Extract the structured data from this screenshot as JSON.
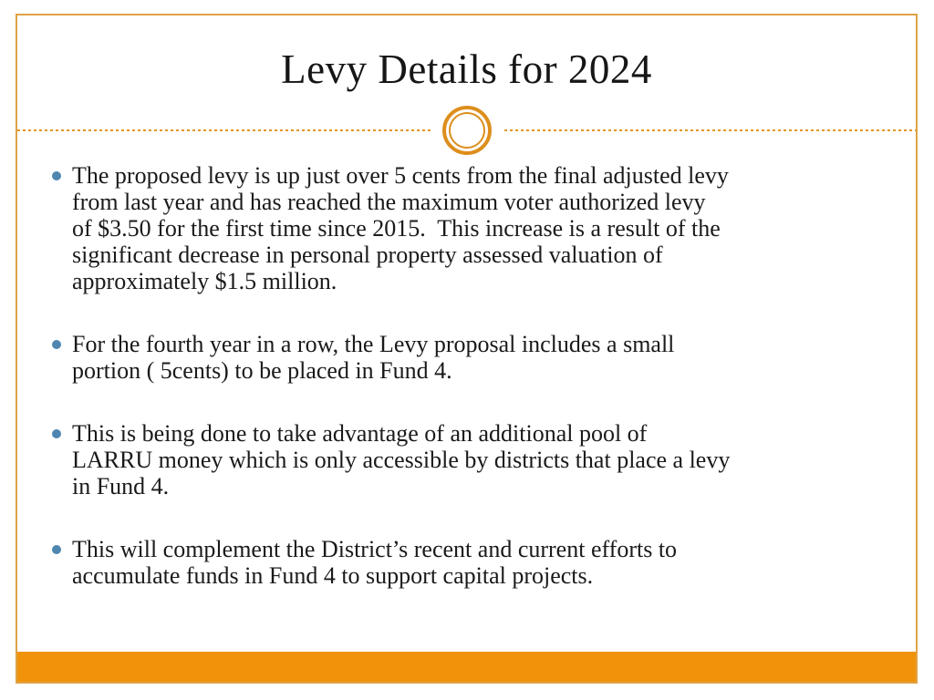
{
  "slide": {
    "title": "Levy Details for 2024",
    "bullets": [
      {
        "lines": [
          "The proposed levy is up just over 5 cents from the final adjusted levy",
          "from last year and has reached the maximum voter authorized levy",
          "of $3.50 for the first time since 2015.  This increase is a result of the",
          "significant decrease in personal property assessed valuation of",
          "approximately $1.5 million."
        ]
      },
      {
        "lines": [
          "For the fourth year in a row, the Levy proposal includes a small",
          "portion ( 5cents) to be placed in Fund 4."
        ]
      },
      {
        "lines": [
          "This is being done to take advantage of an additional pool of",
          "LARRU money which is only accessible by districts that place a levy",
          "in Fund 4."
        ]
      },
      {
        "lines": [
          "This will complement the District’s recent and current efforts to",
          "accumulate funds in Fund 4 to support capital projects."
        ]
      }
    ],
    "colors": {
      "border_gold": "#DFA245",
      "footer_orange": "#F0930B",
      "divider_orange": "#E2971F",
      "ornament_orange": "#DD8E1C",
      "bullet_blue": "#4E86B0",
      "text": "#1A1A1A"
    }
  }
}
